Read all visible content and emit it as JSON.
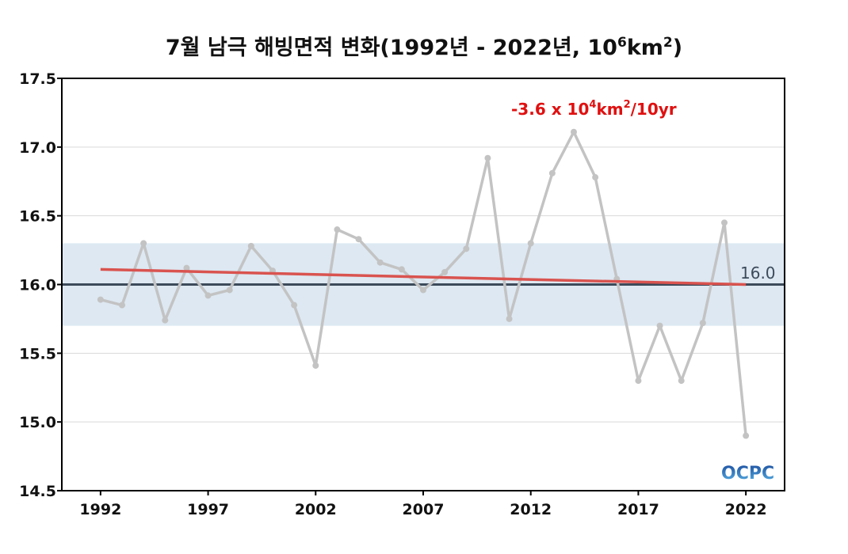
{
  "title": {
    "prefix": "7월 남극 해빙면적 변화(1992년 - 2022년, 10",
    "sup1": "6",
    "middle": "km",
    "sup2": "2",
    "suffix": ")"
  },
  "trend_annotation": {
    "prefix": "-3.6 x 10",
    "sup1": "4",
    "middle": "km",
    "sup2": "2",
    "suffix": "/10yr",
    "color": "#e01010"
  },
  "normal_label": "16.0",
  "logo": {
    "text": "OCPC"
  },
  "colors": {
    "series": "#c3c3c3",
    "trend": "#d9534f",
    "normal_line": "#3c4a5a",
    "band": "#dde8f2",
    "grid": "#d9d9d9"
  },
  "chart_data": {
    "type": "line",
    "title": "7월 남극 해빙면적 변화(1992년 - 2022년, 10⁶km²)",
    "xlabel": "",
    "ylabel": "",
    "x": [
      1992,
      1993,
      1994,
      1995,
      1996,
      1997,
      1998,
      1999,
      2000,
      2001,
      2002,
      2003,
      2004,
      2005,
      2006,
      2007,
      2008,
      2009,
      2010,
      2011,
      2012,
      2013,
      2014,
      2015,
      2016,
      2017,
      2018,
      2019,
      2020,
      2021,
      2022
    ],
    "series": [
      {
        "values": [
          15.89,
          15.85,
          16.3,
          15.74,
          16.12,
          15.92,
          15.96,
          16.28,
          16.1,
          15.85,
          15.41,
          16.4,
          16.33,
          16.16,
          16.11,
          15.96,
          16.09,
          16.26,
          16.92,
          15.75,
          16.3,
          16.81,
          17.11,
          16.78,
          16.04,
          15.3,
          15.7,
          15.3,
          15.72,
          16.45,
          14.9
        ]
      }
    ],
    "trend": {
      "x": [
        1992,
        2022
      ],
      "y": [
        16.11,
        16.0
      ]
    },
    "normal": 16.0,
    "normal_band": [
      15.7,
      16.3
    ],
    "xlim": [
      1990.2,
      2023.8
    ],
    "ylim": [
      14.5,
      17.5
    ],
    "xticks": [
      1992,
      1997,
      2002,
      2007,
      2012,
      2017,
      2022
    ],
    "xtick_labels": [
      "1992",
      "1997",
      "2002",
      "2007",
      "2012",
      "2017",
      "2022"
    ],
    "yticks": [
      14.5,
      15.0,
      15.5,
      16.0,
      16.5,
      17.0,
      17.5
    ],
    "ytick_labels": [
      "14.5",
      "15.0",
      "15.5",
      "16.0",
      "16.5",
      "17.0",
      "17.5"
    ],
    "grid": true
  }
}
